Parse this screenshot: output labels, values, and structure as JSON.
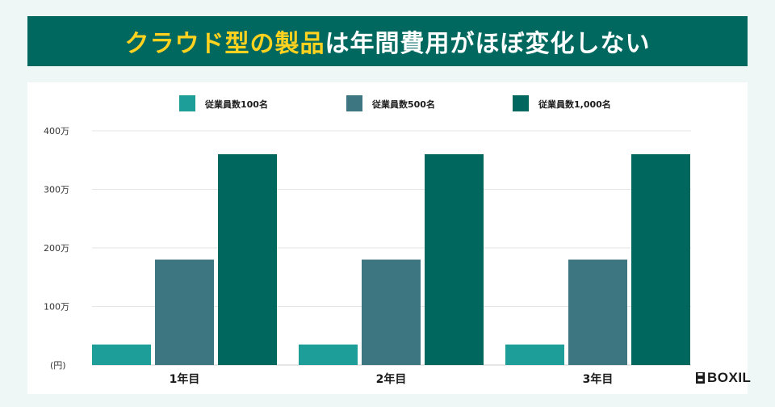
{
  "header": {
    "title_highlight": "クラウド型の製品",
    "title_rest": "は年間費用がほぼ変化しない"
  },
  "brand": {
    "name": "BOXIL"
  },
  "colors": {
    "banner": "#00685f",
    "highlight": "#ffd21f",
    "series": [
      "#1e9e98",
      "#3d7581",
      "#00675f"
    ],
    "grid": "#e3e6e6"
  },
  "chart_data": {
    "type": "bar",
    "categories": [
      "1年目",
      "2年目",
      "3年目"
    ],
    "series": [
      {
        "name": "従業員数100名",
        "values": [
          35,
          35,
          35
        ]
      },
      {
        "name": "従業員数500名",
        "values": [
          180,
          180,
          180
        ]
      },
      {
        "name": "従業員数1,000名",
        "values": [
          360,
          360,
          360
        ]
      }
    ],
    "yticks": [
      {
        "value": 100,
        "label": "100万"
      },
      {
        "value": 200,
        "label": "200万"
      },
      {
        "value": 300,
        "label": "300万"
      },
      {
        "value": 400,
        "label": "400万"
      }
    ],
    "ylabel": "(円)",
    "ylim": [
      0,
      400
    ],
    "grid": true,
    "legend_position": "top"
  }
}
